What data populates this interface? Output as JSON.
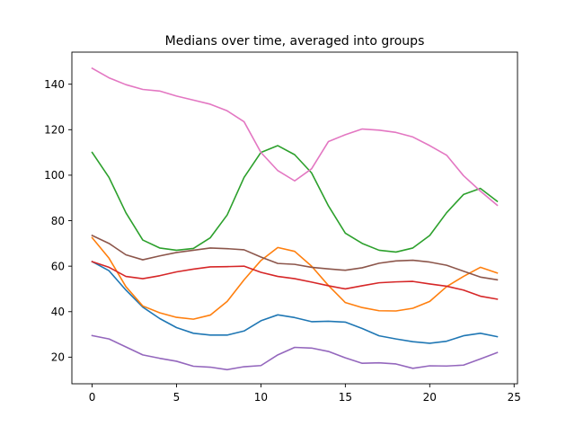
{
  "chart_data": {
    "type": "line",
    "title": "Medians over time, averaged into groups",
    "xlabel": "",
    "ylabel": "",
    "xlim": [
      -1.2,
      25.2
    ],
    "ylim": [
      8.3,
      154.1
    ],
    "xticks": [
      0,
      5,
      10,
      15,
      20,
      25
    ],
    "yticks": [
      20,
      40,
      60,
      80,
      100,
      120,
      140
    ],
    "grid": false,
    "legend": "none",
    "x": [
      0,
      1,
      2,
      3,
      4,
      5,
      6,
      7,
      8,
      9,
      10,
      11,
      12,
      13,
      14,
      15,
      16,
      17,
      18,
      19,
      20,
      21,
      22,
      23,
      24
    ],
    "series": [
      {
        "color": "#1f77b4",
        "values": [
          62.0,
          58.0,
          49.5,
          42.0,
          37.0,
          33.0,
          30.5,
          29.7,
          29.7,
          31.5,
          36.0,
          38.6,
          37.4,
          35.6,
          35.8,
          35.4,
          32.6,
          29.4,
          28.0,
          26.8,
          26.1,
          27.0,
          29.4,
          30.5,
          29.0
        ]
      },
      {
        "color": "#ff7f0e",
        "values": [
          72.5,
          63.5,
          51.0,
          42.5,
          39.5,
          37.5,
          36.7,
          38.5,
          44.5,
          54.0,
          62.5,
          68.2,
          66.5,
          60.0,
          51.5,
          44.0,
          41.8,
          40.4,
          40.3,
          41.5,
          44.5,
          51.0,
          55.5,
          59.5,
          57.0
        ]
      },
      {
        "color": "#2ca02c",
        "values": [
          110.0,
          99.0,
          83.5,
          71.5,
          68.0,
          67.0,
          67.8,
          72.5,
          82.5,
          99.0,
          110.0,
          113.0,
          109.0,
          101.0,
          86.5,
          74.5,
          70.0,
          67.0,
          66.2,
          68.0,
          73.5,
          83.5,
          91.5,
          94.2,
          88.5
        ]
      },
      {
        "color": "#d62728",
        "values": [
          62.0,
          59.5,
          55.5,
          54.5,
          55.8,
          57.5,
          58.7,
          59.7,
          59.8,
          60.0,
          57.3,
          55.5,
          54.5,
          53.0,
          51.4,
          50.0,
          51.4,
          52.7,
          53.1,
          53.3,
          52.2,
          51.2,
          49.5,
          46.8,
          45.5
        ]
      },
      {
        "color": "#9467bd",
        "values": [
          29.5,
          28.0,
          24.5,
          21.0,
          19.5,
          18.2,
          16.0,
          15.6,
          14.5,
          15.8,
          16.3,
          21.0,
          24.3,
          24.0,
          22.5,
          19.7,
          17.3,
          17.5,
          17.0,
          15.1,
          16.2,
          16.1,
          16.5,
          19.2,
          22.0
        ]
      },
      {
        "color": "#8c564b",
        "values": [
          73.5,
          70.0,
          65.0,
          62.8,
          64.5,
          66.0,
          67.0,
          68.0,
          67.7,
          67.2,
          64.0,
          61.2,
          60.8,
          59.5,
          58.8,
          58.2,
          59.3,
          61.3,
          62.3,
          62.6,
          61.8,
          60.4,
          57.8,
          55.2,
          54.0
        ]
      },
      {
        "color": "#e377c2",
        "values": [
          147.0,
          142.8,
          139.8,
          137.7,
          137.0,
          134.8,
          133.0,
          131.2,
          128.3,
          123.5,
          110.0,
          102.0,
          97.5,
          102.8,
          114.8,
          117.8,
          120.3,
          119.8,
          118.8,
          116.8,
          113.0,
          108.8,
          99.8,
          93.0,
          86.8
        ]
      }
    ]
  }
}
